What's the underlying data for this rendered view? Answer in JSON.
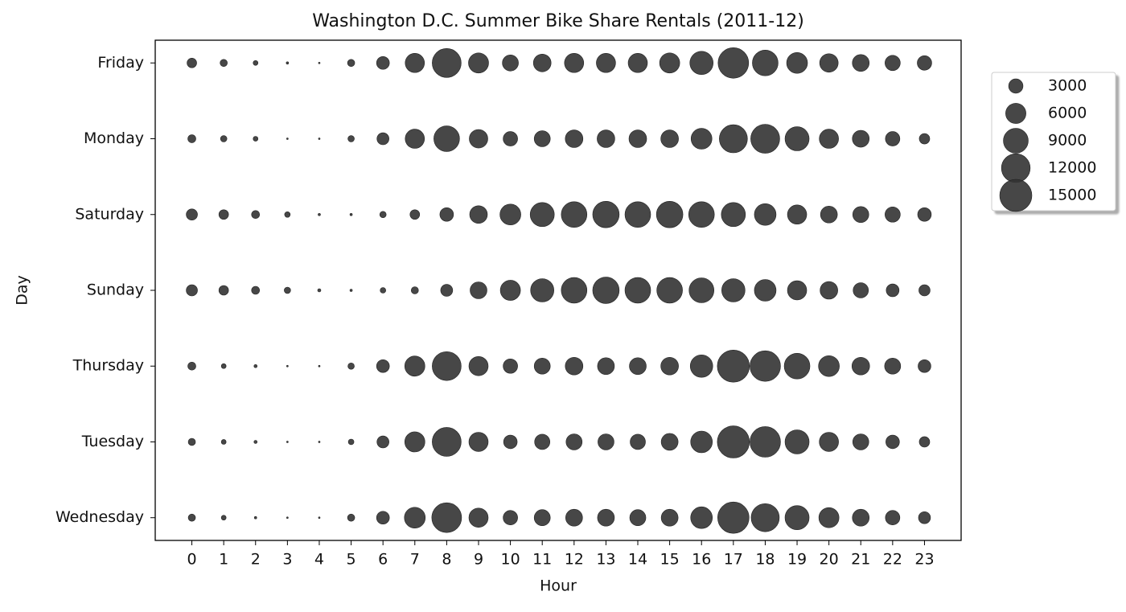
{
  "chart_data": {
    "type": "scatter",
    "title": "Washington D.C. Summer Bike Share Rentals (2011-12)",
    "x_label": "Hour",
    "y_label": "Day",
    "x": [
      0,
      1,
      2,
      3,
      4,
      5,
      6,
      7,
      8,
      9,
      10,
      11,
      12,
      13,
      14,
      15,
      16,
      17,
      18,
      19,
      20,
      21,
      22,
      23
    ],
    "categories": [
      "Friday",
      "Monday",
      "Saturday",
      "Sunday",
      "Thursday",
      "Tuesday",
      "Wednesday"
    ],
    "sizes": [
      [
        1350,
        760,
        340,
        85,
        40,
        760,
        2400,
        5400,
        12200,
        5900,
        3760,
        4550,
        5400,
        5400,
        5400,
        5900,
        7900,
        13600,
        9600,
        6350,
        5000,
        4150,
        3400,
        3050
      ],
      [
        940,
        600,
        340,
        40,
        40,
        600,
        2100,
        5400,
        9600,
        5000,
        3050,
        3760,
        4550,
        4550,
        4550,
        4550,
        6350,
        11500,
        12200,
        8460,
        5400,
        4150,
        3050,
        1600
      ],
      [
        1840,
        1350,
        940,
        460,
        85,
        85,
        600,
        1350,
        2700,
        4550,
        6350,
        8460,
        9600,
        10200,
        9600,
        10200,
        9600,
        8460,
        6850,
        5400,
        4150,
        3760,
        3400,
        2700
      ],
      [
        1840,
        1350,
        940,
        600,
        150,
        85,
        460,
        760,
        2100,
        4150,
        5900,
        7900,
        9600,
        10200,
        9600,
        9600,
        9030,
        7900,
        6850,
        5400,
        4550,
        3400,
        2400,
        1840
      ],
      [
        940,
        340,
        150,
        40,
        40,
        600,
        2400,
        5900,
        12200,
        5400,
        3050,
        3760,
        4550,
        4150,
        4150,
        4550,
        7370,
        15000,
        13600,
        9600,
        6350,
        4550,
        3760,
        2400
      ],
      [
        760,
        340,
        150,
        40,
        40,
        460,
        2100,
        5900,
        12200,
        5400,
        2700,
        3400,
        3760,
        3760,
        3400,
        4150,
        6850,
        15000,
        13600,
        8460,
        5400,
        3760,
        2700,
        1600
      ],
      [
        760,
        340,
        85,
        40,
        40,
        760,
        2400,
        6350,
        12900,
        5400,
        3050,
        3760,
        4150,
        4150,
        3760,
        4150,
        6850,
        14300,
        11500,
        8460,
        5900,
        4150,
        3050,
        2100
      ]
    ],
    "color": "#333333",
    "xlim": [
      -1.15,
      24.15
    ],
    "xticks": [
      0,
      1,
      2,
      3,
      4,
      5,
      6,
      7,
      8,
      9,
      10,
      11,
      12,
      13,
      14,
      15,
      16,
      17,
      18,
      19,
      20,
      21,
      22,
      23
    ],
    "legend": {
      "position": "right",
      "sizes": [
        3000,
        6000,
        9000,
        12000,
        15000
      ]
    }
  }
}
